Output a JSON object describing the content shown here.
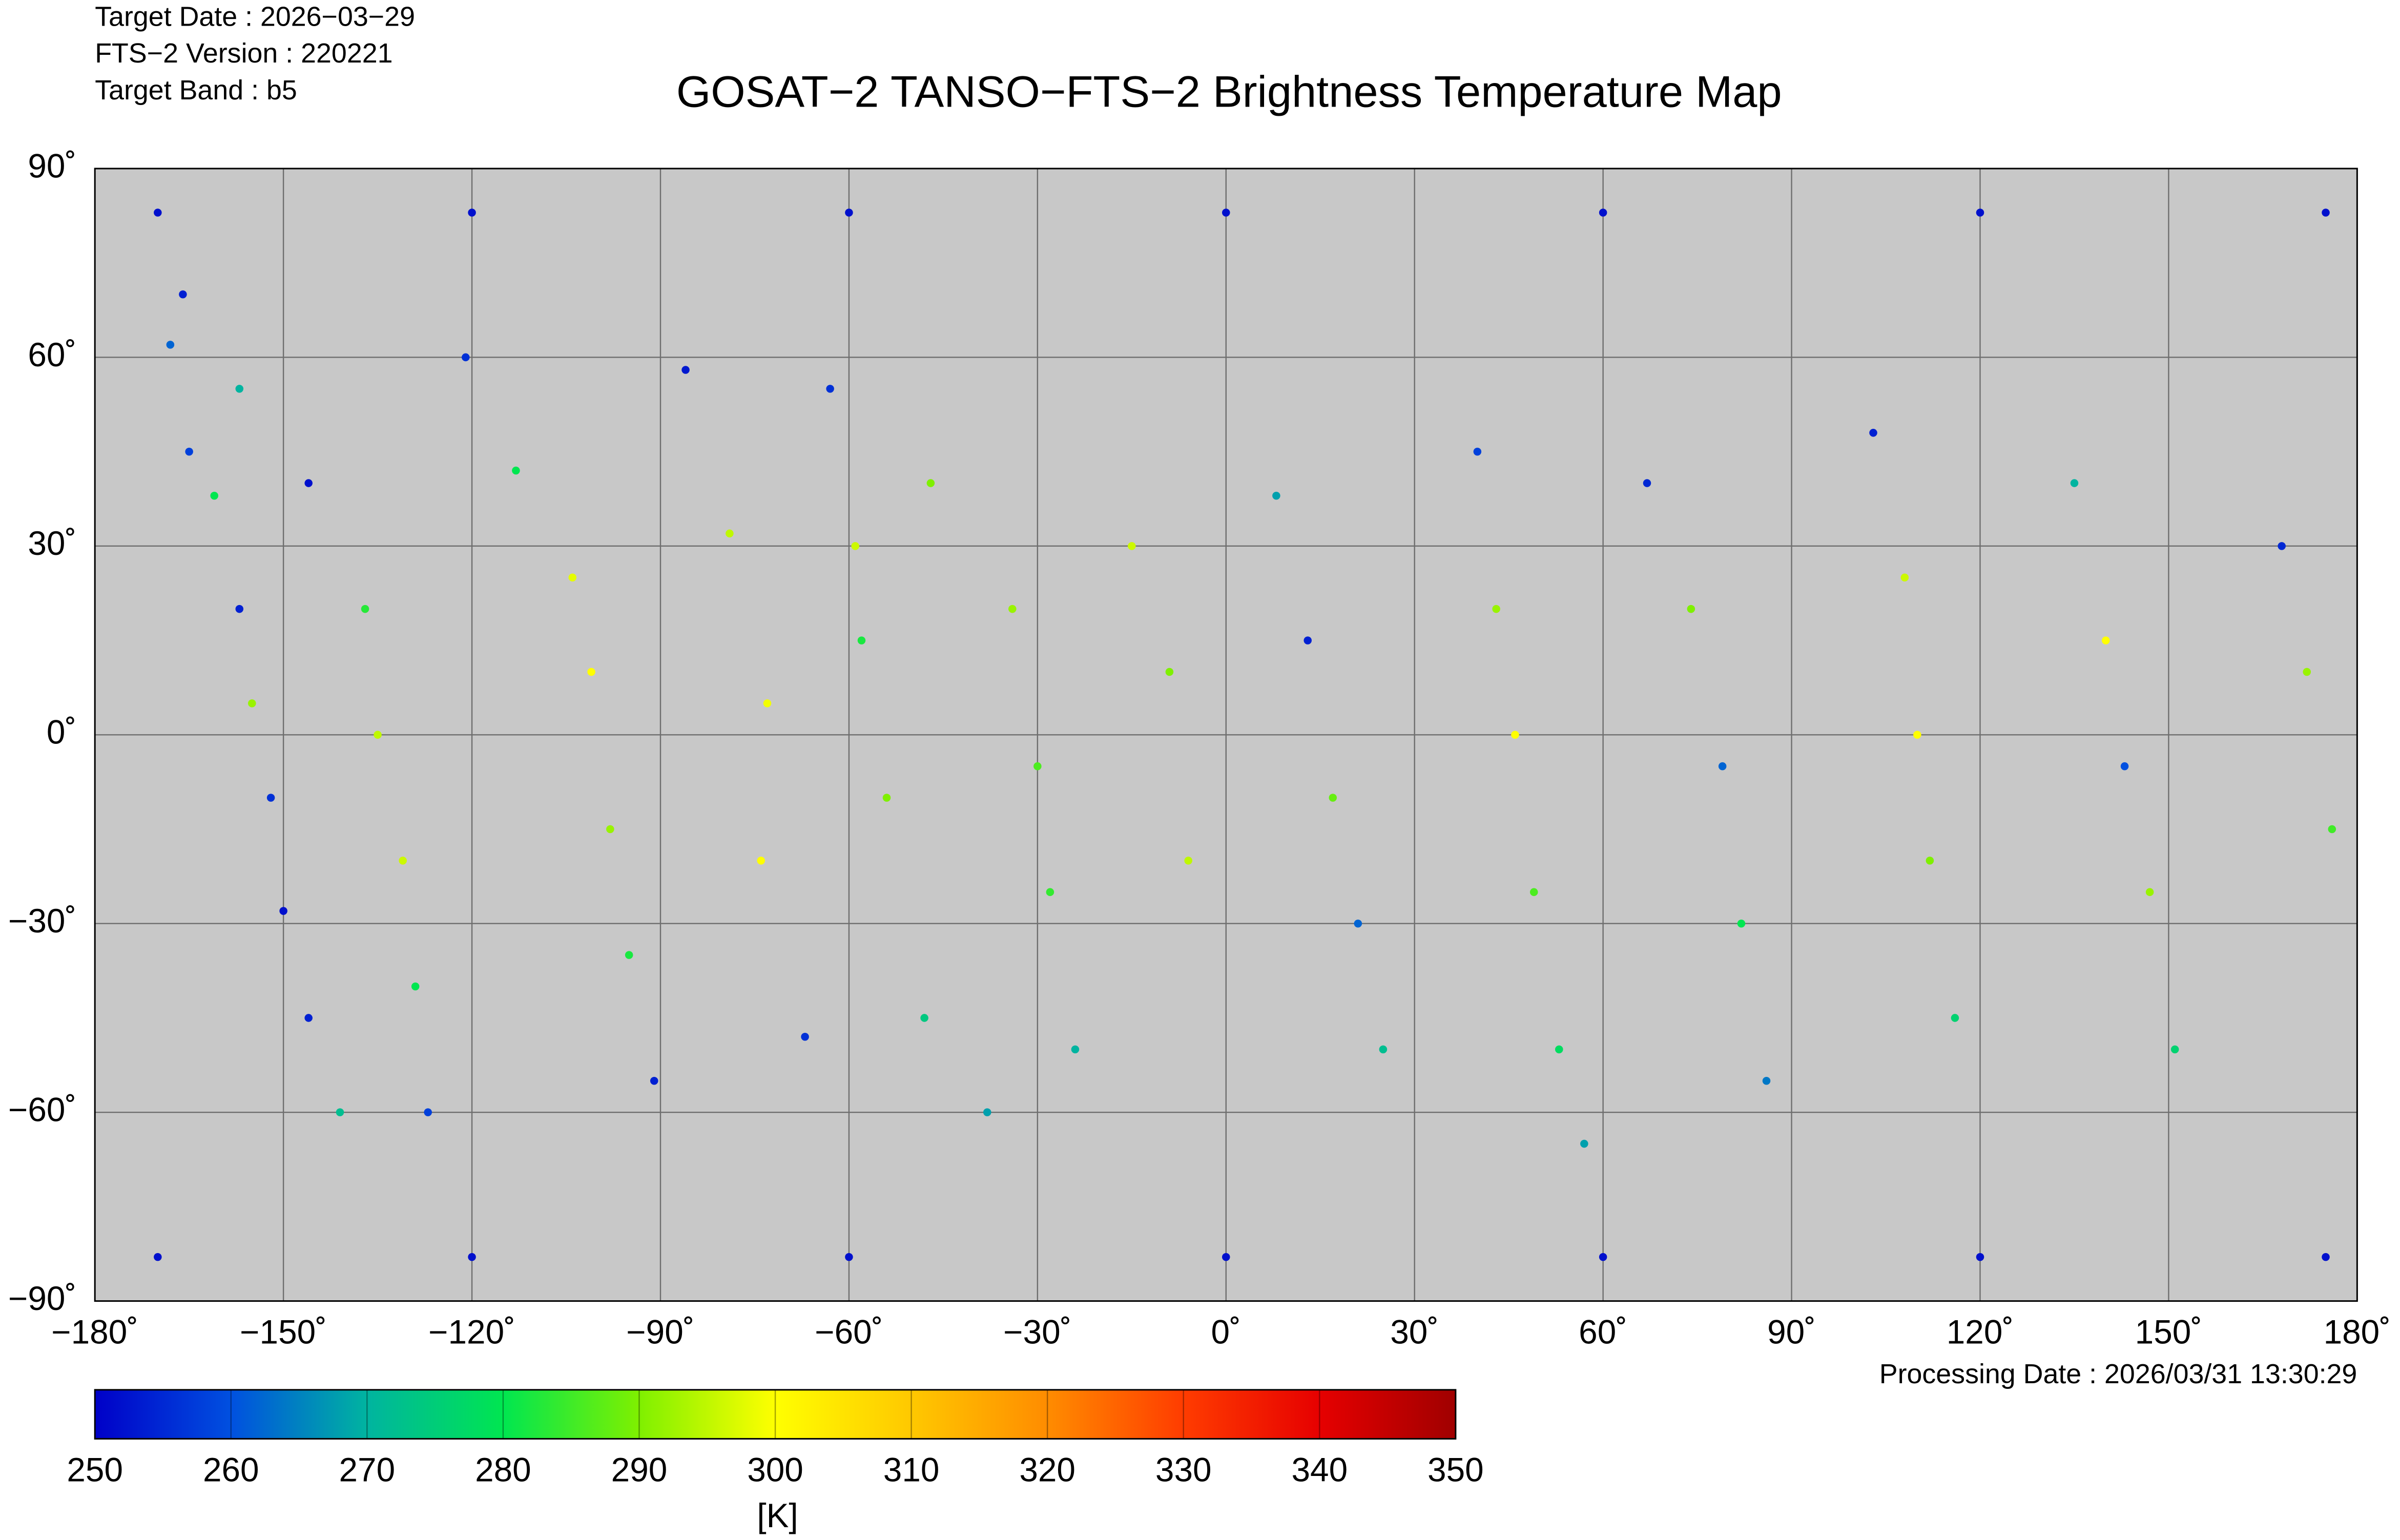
{
  "chart_data": {
    "type": "scatter",
    "title": "GOSAT−2 TANSO−FTS−2 Brightness Temperature Map",
    "info": [
      "Target Date   : 2026−03−29",
      "FTS−2 Version : 220221",
      "Target Band   : b5"
    ],
    "processing_date": "Processing Date : 2026/03/31 13:30:29",
    "xlim": [
      -180,
      180
    ],
    "ylim": [
      -90,
      90
    ],
    "xticks": [
      {
        "value": -180,
        "label": "−180˚"
      },
      {
        "value": -150,
        "label": "−150˚"
      },
      {
        "value": -120,
        "label": "−120˚"
      },
      {
        "value": -90,
        "label": "−90˚"
      },
      {
        "value": -60,
        "label": "−60˚"
      },
      {
        "value": -30,
        "label": "−30˚"
      },
      {
        "value": 0,
        "label": "0˚"
      },
      {
        "value": 30,
        "label": "30˚"
      },
      {
        "value": 60,
        "label": "60˚"
      },
      {
        "value": 90,
        "label": "90˚"
      },
      {
        "value": 120,
        "label": "120˚"
      },
      {
        "value": 150,
        "label": "150˚"
      },
      {
        "value": 180,
        "label": "180˚"
      }
    ],
    "yticks": [
      {
        "value": 90,
        "label": "90˚"
      },
      {
        "value": 60,
        "label": "60˚"
      },
      {
        "value": 30,
        "label": "30˚"
      },
      {
        "value": 0,
        "label": "0˚"
      },
      {
        "value": -30,
        "label": "−30˚"
      },
      {
        "value": -60,
        "label": "−60˚"
      },
      {
        "value": -90,
        "label": "−90˚"
      }
    ],
    "grid": true,
    "background": "#c8c8c8",
    "clim": [
      250,
      350
    ],
    "cticks": [
      250,
      260,
      270,
      280,
      290,
      300,
      310,
      320,
      330,
      340,
      350
    ],
    "colorbar_label": "[K]",
    "colormap": [
      "#0000c8",
      "#0050e0",
      "#00b4a0",
      "#00e650",
      "#7ff000",
      "#ffff00",
      "#ffc800",
      "#ff8c00",
      "#ff3c00",
      "#e60000",
      "#a00000"
    ],
    "x": [
      -168,
      -165,
      -161,
      -157,
      -155,
      -152,
      -150,
      -146,
      -141,
      -166,
      -157,
      -146,
      -137,
      -135,
      -131,
      -129,
      -127,
      -121,
      -113,
      -104,
      -101,
      -98,
      -95,
      -91,
      -86,
      -79,
      -73,
      -74,
      -67,
      -63,
      -59,
      -58,
      -54,
      -48,
      -38,
      -47,
      -34,
      -30,
      -28,
      -24,
      -15,
      -9,
      -6,
      8,
      13,
      17,
      21,
      25,
      40,
      43,
      46,
      49,
      53,
      57,
      67,
      74,
      79,
      82,
      86,
      103,
      108,
      110,
      112,
      116,
      135,
      140,
      143,
      147,
      151,
      168,
      172,
      176,
      -170,
      -120,
      -60,
      0,
      60,
      120,
      175,
      -170,
      -120,
      -60,
      0,
      60,
      120,
      175
    ],
    "y": [
      62,
      45,
      38,
      20,
      5,
      -10,
      -28,
      -45,
      -60,
      70,
      55,
      40,
      20,
      0,
      -20,
      -40,
      -60,
      60,
      42,
      25,
      10,
      -15,
      -35,
      -55,
      58,
      32,
      5,
      -20,
      -48,
      55,
      30,
      15,
      -10,
      -45,
      -60,
      40,
      20,
      -5,
      -25,
      -50,
      30,
      10,
      -20,
      38,
      15,
      -10,
      -30,
      -50,
      45,
      20,
      0,
      -25,
      -50,
      -65,
      40,
      20,
      -5,
      -30,
      -55,
      48,
      25,
      0,
      -20,
      -45,
      40,
      15,
      -5,
      -25,
      -50,
      30,
      10,
      -15,
      83,
      83,
      83,
      83,
      83,
      83,
      83,
      -83,
      -83,
      -83,
      -83,
      -83,
      -83,
      -83
    ],
    "values": [
      262,
      258,
      280,
      254,
      292,
      256,
      252,
      254,
      272,
      254,
      270,
      252,
      283,
      295,
      296,
      280,
      258,
      256,
      280,
      298,
      300,
      292,
      282,
      254,
      253,
      295,
      299,
      300,
      256,
      256,
      296,
      282,
      290,
      274,
      268,
      290,
      292,
      286,
      284,
      270,
      296,
      290,
      295,
      268,
      254,
      288,
      262,
      272,
      258,
      292,
      300,
      286,
      278,
      268,
      255,
      290,
      262,
      280,
      264,
      254,
      296,
      300,
      290,
      276,
      270,
      300,
      260,
      292,
      276,
      255,
      292,
      285,
      252,
      252,
      252,
      252,
      252,
      252,
      252,
      252,
      252,
      252,
      252,
      252,
      252,
      252
    ]
  }
}
